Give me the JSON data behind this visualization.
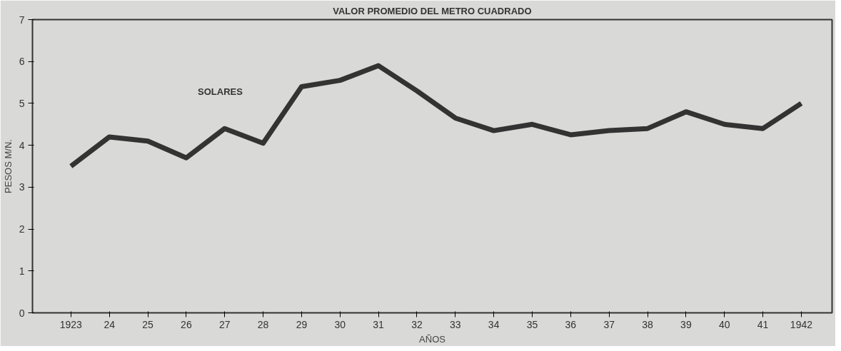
{
  "chart_data": {
    "type": "line",
    "title": "VALOR PROMEDIO DEL METRO CUADRADO",
    "xlabel": "AÑOS",
    "ylabel": "PESOS M/N.",
    "categories": [
      "1923",
      "24",
      "25",
      "26",
      "27",
      "28",
      "29",
      "30",
      "31",
      "32",
      "33",
      "34",
      "35",
      "36",
      "37",
      "38",
      "39",
      "40",
      "41",
      "1942"
    ],
    "series": [
      {
        "name": "SOLARES",
        "color": "#333333",
        "values": [
          3.5,
          4.2,
          4.1,
          3.7,
          4.4,
          4.05,
          5.4,
          5.55,
          5.9,
          5.3,
          4.65,
          4.35,
          4.5,
          4.25,
          4.35,
          4.4,
          4.8,
          4.5,
          4.4,
          5.0
        ]
      }
    ],
    "ylim": [
      0,
      7
    ],
    "yticks": [
      0,
      1,
      2,
      3,
      4,
      5,
      6,
      7
    ],
    "grid": false,
    "legend": false
  }
}
